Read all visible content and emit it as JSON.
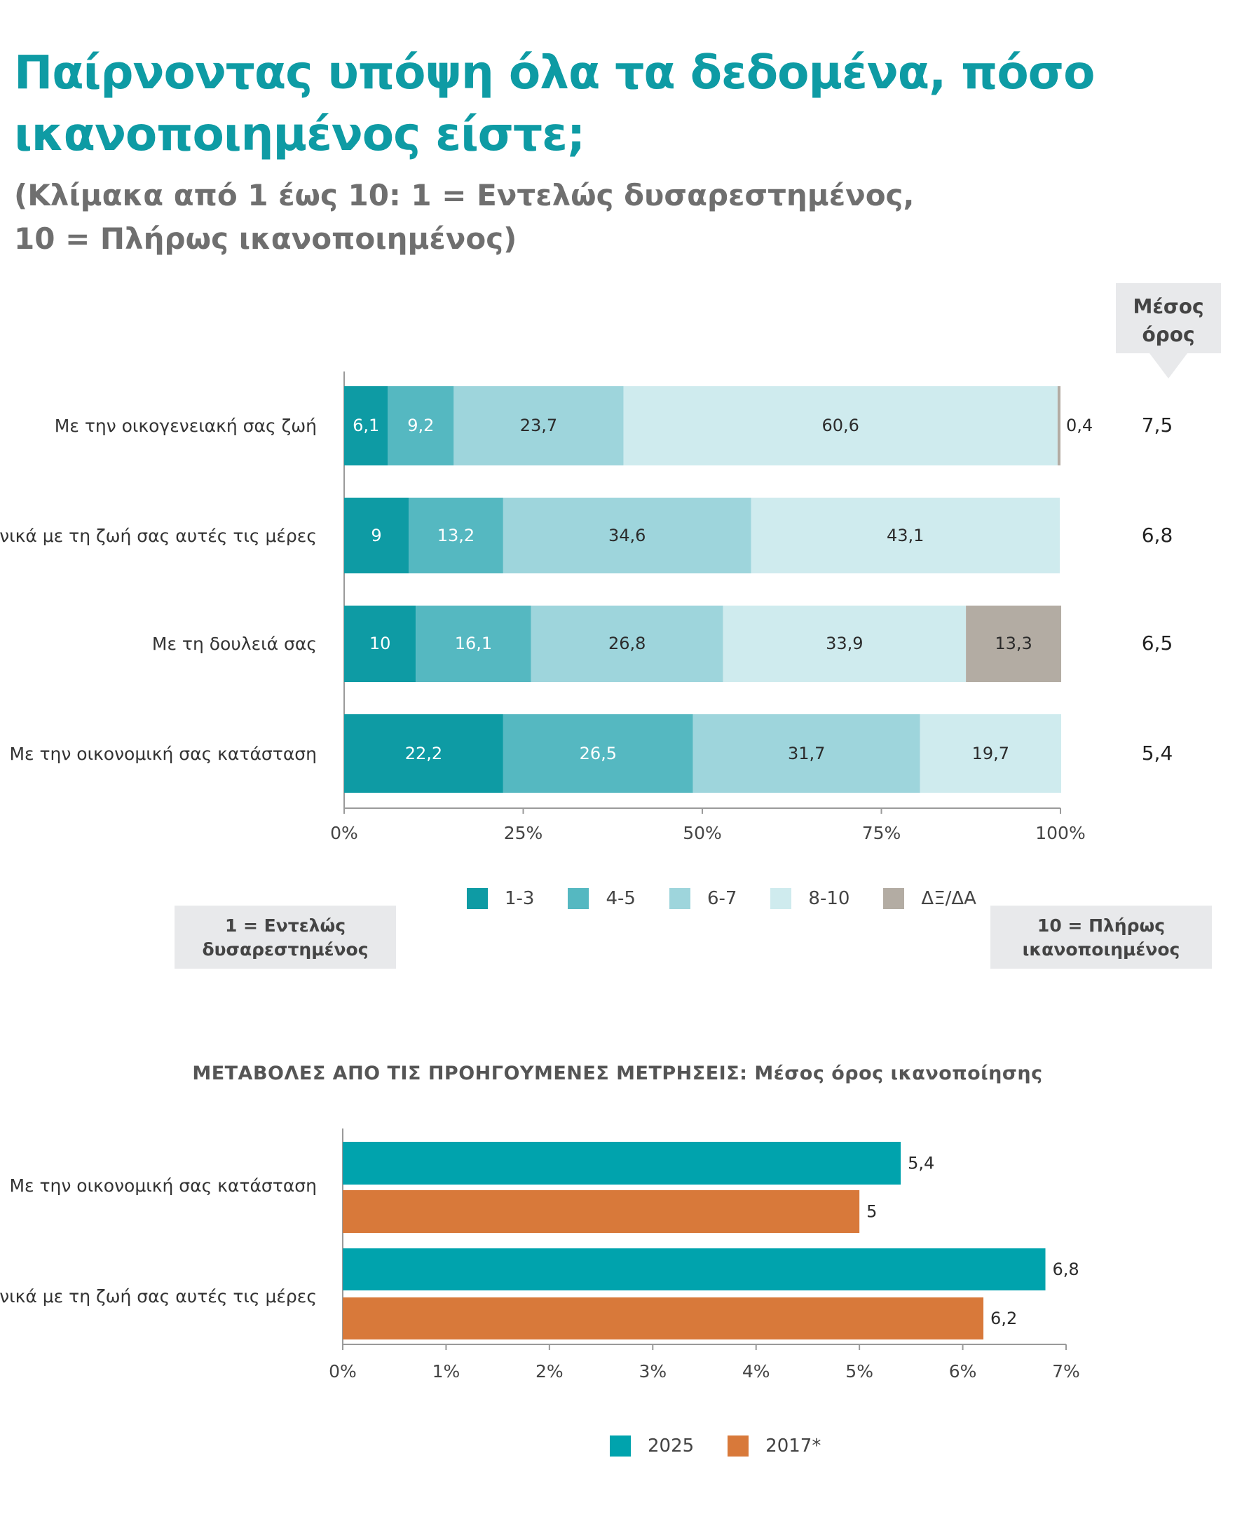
{
  "title": "Παίρνοντας υπόψη όλα τα δεδομένα, πόσο ικανοποιημένος είστε;",
  "subtitle_line1": "(Κλίμακα από 1 έως 10: 1 = Εντελώς δυσαρεστημένος,",
  "subtitle_line2": "10 = Πλήρως ικανοποιημένος)",
  "mean_header_line1": "Μέσος",
  "mean_header_line2": "όρος",
  "scale_left_line1": "1 = Εντελώς",
  "scale_left_line2": "δυσαρεστημένος",
  "scale_right_line1": "10 = Πλήρως",
  "scale_right_line2": "ικανοποιημένος",
  "chart2_title": "ΜΕΤΑΒΟΛΕΣ ΑΠΟ ΤΙΣ ΠΡΟΗΓΟΥΜΕΝΕΣ ΜΕΤΡΗΣΕΙΣ: Μέσος όρος ικανοποίησης",
  "colors": {
    "title": "#0e9ba4",
    "c13": "#0e9ba4",
    "c45": "#55b8c1",
    "c67": "#9ed5dc",
    "c810": "#cfebee",
    "cdk": "#b3aca3",
    "s2025": "#00a3ad",
    "s2017": "#d8793a"
  },
  "chart_data": [
    {
      "type": "bar",
      "orientation": "horizontal",
      "stacked": true,
      "categories": [
        "Με την οικογενειακή σας ζωή",
        "Γενικά με τη ζωή σας αυτές τις μέρες",
        "Με τη δουλειά σας",
        "Με την οικονομική σας κατάσταση"
      ],
      "series": [
        {
          "name": "1-3",
          "values": [
            6.1,
            9,
            10,
            22.2
          ]
        },
        {
          "name": "4-5",
          "values": [
            9.2,
            13.2,
            16.1,
            26.5
          ]
        },
        {
          "name": "6-7",
          "values": [
            23.7,
            34.6,
            26.8,
            31.7
          ]
        },
        {
          "name": "8-10",
          "values": [
            60.6,
            43.1,
            33.9,
            19.7
          ]
        },
        {
          "name": "ΔΞ/ΔΑ",
          "values": [
            0.4,
            0,
            13.3,
            0
          ]
        }
      ],
      "value_labels": [
        [
          "6,1",
          "9,2",
          "23,7",
          "60,6",
          "0,4"
        ],
        [
          "9",
          "13,2",
          "34,6",
          "43,1",
          ""
        ],
        [
          "10",
          "16,1",
          "26,8",
          "33,9",
          "13,3"
        ],
        [
          "22,2",
          "26,5",
          "31,7",
          "19,7",
          ""
        ]
      ],
      "means": [
        "7,5",
        "6,8",
        "6,5",
        "5,4"
      ],
      "xlim": [
        0,
        100
      ],
      "ticks": [
        "0%",
        "25%",
        "50%",
        "75%",
        "100%"
      ],
      "legend": "bottom"
    },
    {
      "type": "bar",
      "orientation": "horizontal",
      "title": "ΜΕΤΑΒΟΛΕΣ ΑΠΟ ΤΙΣ ΠΡΟΗΓΟΥΜΕΝΕΣ ΜΕΤΡΗΣΕΙΣ: Μέσος όρος ικανοποίησης",
      "categories": [
        "Με την οικονομική σας κατάσταση",
        "Γενικά με τη ζωή σας αυτές τις μέρες"
      ],
      "series": [
        {
          "name": "2025",
          "values": [
            5.4,
            6.8
          ],
          "labels": [
            "5,4",
            "6,8"
          ]
        },
        {
          "name": "2017*",
          "values": [
            5,
            6.2
          ],
          "labels": [
            "5",
            "6,2"
          ]
        }
      ],
      "xlim": [
        0,
        7
      ],
      "ticks": [
        "0%",
        "1%",
        "2%",
        "3%",
        "4%",
        "5%",
        "6%",
        "7%"
      ],
      "legend": "bottom"
    }
  ]
}
